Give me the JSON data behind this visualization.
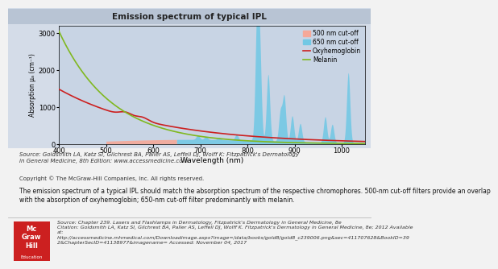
{
  "title": "Emission spectrum of typical IPL",
  "xlabel": "Wavelength (nm)",
  "ylabel": "Absorption μₐ (cm⁻¹)",
  "xlim": [
    400,
    1050
  ],
  "ylim": [
    0,
    3200
  ],
  "yticks": [
    0,
    1000,
    2000,
    3000
  ],
  "xticks": [
    400,
    500,
    600,
    700,
    800,
    900,
    1000
  ],
  "plot_bg_color": "#c8d4e4",
  "panel_bg_color": "#d4dce8",
  "title_bg_color": "#b8c4d4",
  "outer_bg": "#f2f2f2",
  "cutoff500_color": "#f5a898",
  "cutoff650_color": "#72c8e4",
  "oxyh_color": "#cc2020",
  "melanin_color": "#80b820",
  "ipl_peaks": [
    [
      695,
      120
    ],
    [
      712,
      80
    ],
    [
      740,
      60
    ],
    [
      777,
      150
    ],
    [
      820,
      3100
    ],
    [
      826,
      2400
    ],
    [
      844,
      1800
    ],
    [
      870,
      800
    ],
    [
      878,
      1200
    ],
    [
      895,
      700
    ],
    [
      912,
      500
    ],
    [
      965,
      700
    ],
    [
      980,
      500
    ],
    [
      1014,
      1900
    ]
  ],
  "ipl_continuum_start": 500,
  "ipl_continuum_end": 1050,
  "cutoff500_start": 500,
  "cutoff500_end": 650,
  "cutoff650_start": 650,
  "cutoff650_end": 1050,
  "source_text": "Source: Goldsmith LA, Katz SI, Gilchrest BA, Paller AS, Leffell DJ, Wolff K: Fitzpatrick's Dermatology\nin General Medicine, 8th Edition: www.accessmedicine.com",
  "copyright_text": "Copyright © The McGraw-Hill Companies, Inc. All rights reserved.",
  "body_text": "The emission spectrum of a typical IPL should match the absorption spectrum of the respective chromophores. 500-nm cut-off filters provide an overlap\nwith the absorption of oxyhemoglobin; 650-nm cut-off filter predominantly with melanin.",
  "bottom_source_line1": "Source: Chapter 239. Lasers and Flashlamps in Dermatology, Fitzpatrick's Dermatology in General Medicine, 8e",
  "bottom_source_line2": "Citation: Goldsmith LA, Katz SI, Gilchrest BA, Paller AS, Leffell DJ, Wolff K. Fitzpatrick's Dermatology in General Medicine, 8e; 2012 Available",
  "bottom_source_line3": "at:",
  "bottom_source_line4": "http://accessmedicine.mhmedical.com/Downloadimage.aspx?image=/data/books/gold8/gold8_c239006.png&sec=411707628&BookID=39",
  "bottom_source_line5": "2&ChapterSecID=41138977&imagename= Accessed: November 04, 2017",
  "logo_lines": [
    "Mc",
    "Graw",
    "Hill"
  ],
  "logo_subtext": "Education",
  "logo_color": "#cc2020"
}
